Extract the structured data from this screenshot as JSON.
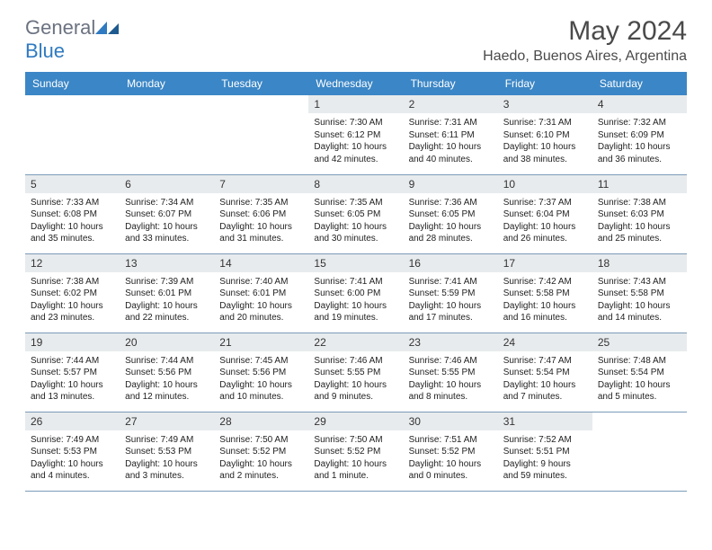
{
  "logo": {
    "word1": "General",
    "word2": "Blue"
  },
  "header": {
    "title": "May 2024",
    "location": "Haedo, Buenos Aires, Argentina"
  },
  "weekdays": [
    "Sunday",
    "Monday",
    "Tuesday",
    "Wednesday",
    "Thursday",
    "Friday",
    "Saturday"
  ],
  "styling": {
    "type": "calendar-table",
    "header_bg": "#3b86c6",
    "header_fg": "#ffffff",
    "daynum_bg": "#e8ebed",
    "text_color": "#222222",
    "title_color": "#4a4a4a",
    "border_color": "#7a9bb8",
    "font_family": "Arial",
    "title_fontsize": 30,
    "location_fontsize": 16,
    "header_fontsize": 12,
    "daynum_fontsize": 12,
    "body_fontsize": 10,
    "columns": 7,
    "rows": 5
  },
  "first_day_column": 3,
  "days": [
    {
      "n": 1,
      "sunrise": "7:30 AM",
      "sunset": "6:12 PM",
      "daylight": "10 hours and 42 minutes."
    },
    {
      "n": 2,
      "sunrise": "7:31 AM",
      "sunset": "6:11 PM",
      "daylight": "10 hours and 40 minutes."
    },
    {
      "n": 3,
      "sunrise": "7:31 AM",
      "sunset": "6:10 PM",
      "daylight": "10 hours and 38 minutes."
    },
    {
      "n": 4,
      "sunrise": "7:32 AM",
      "sunset": "6:09 PM",
      "daylight": "10 hours and 36 minutes."
    },
    {
      "n": 5,
      "sunrise": "7:33 AM",
      "sunset": "6:08 PM",
      "daylight": "10 hours and 35 minutes."
    },
    {
      "n": 6,
      "sunrise": "7:34 AM",
      "sunset": "6:07 PM",
      "daylight": "10 hours and 33 minutes."
    },
    {
      "n": 7,
      "sunrise": "7:35 AM",
      "sunset": "6:06 PM",
      "daylight": "10 hours and 31 minutes."
    },
    {
      "n": 8,
      "sunrise": "7:35 AM",
      "sunset": "6:05 PM",
      "daylight": "10 hours and 30 minutes."
    },
    {
      "n": 9,
      "sunrise": "7:36 AM",
      "sunset": "6:05 PM",
      "daylight": "10 hours and 28 minutes."
    },
    {
      "n": 10,
      "sunrise": "7:37 AM",
      "sunset": "6:04 PM",
      "daylight": "10 hours and 26 minutes."
    },
    {
      "n": 11,
      "sunrise": "7:38 AM",
      "sunset": "6:03 PM",
      "daylight": "10 hours and 25 minutes."
    },
    {
      "n": 12,
      "sunrise": "7:38 AM",
      "sunset": "6:02 PM",
      "daylight": "10 hours and 23 minutes."
    },
    {
      "n": 13,
      "sunrise": "7:39 AM",
      "sunset": "6:01 PM",
      "daylight": "10 hours and 22 minutes."
    },
    {
      "n": 14,
      "sunrise": "7:40 AM",
      "sunset": "6:01 PM",
      "daylight": "10 hours and 20 minutes."
    },
    {
      "n": 15,
      "sunrise": "7:41 AM",
      "sunset": "6:00 PM",
      "daylight": "10 hours and 19 minutes."
    },
    {
      "n": 16,
      "sunrise": "7:41 AM",
      "sunset": "5:59 PM",
      "daylight": "10 hours and 17 minutes."
    },
    {
      "n": 17,
      "sunrise": "7:42 AM",
      "sunset": "5:58 PM",
      "daylight": "10 hours and 16 minutes."
    },
    {
      "n": 18,
      "sunrise": "7:43 AM",
      "sunset": "5:58 PM",
      "daylight": "10 hours and 14 minutes."
    },
    {
      "n": 19,
      "sunrise": "7:44 AM",
      "sunset": "5:57 PM",
      "daylight": "10 hours and 13 minutes."
    },
    {
      "n": 20,
      "sunrise": "7:44 AM",
      "sunset": "5:56 PM",
      "daylight": "10 hours and 12 minutes."
    },
    {
      "n": 21,
      "sunrise": "7:45 AM",
      "sunset": "5:56 PM",
      "daylight": "10 hours and 10 minutes."
    },
    {
      "n": 22,
      "sunrise": "7:46 AM",
      "sunset": "5:55 PM",
      "daylight": "10 hours and 9 minutes."
    },
    {
      "n": 23,
      "sunrise": "7:46 AM",
      "sunset": "5:55 PM",
      "daylight": "10 hours and 8 minutes."
    },
    {
      "n": 24,
      "sunrise": "7:47 AM",
      "sunset": "5:54 PM",
      "daylight": "10 hours and 7 minutes."
    },
    {
      "n": 25,
      "sunrise": "7:48 AM",
      "sunset": "5:54 PM",
      "daylight": "10 hours and 5 minutes."
    },
    {
      "n": 26,
      "sunrise": "7:49 AM",
      "sunset": "5:53 PM",
      "daylight": "10 hours and 4 minutes."
    },
    {
      "n": 27,
      "sunrise": "7:49 AM",
      "sunset": "5:53 PM",
      "daylight": "10 hours and 3 minutes."
    },
    {
      "n": 28,
      "sunrise": "7:50 AM",
      "sunset": "5:52 PM",
      "daylight": "10 hours and 2 minutes."
    },
    {
      "n": 29,
      "sunrise": "7:50 AM",
      "sunset": "5:52 PM",
      "daylight": "10 hours and 1 minute."
    },
    {
      "n": 30,
      "sunrise": "7:51 AM",
      "sunset": "5:52 PM",
      "daylight": "10 hours and 0 minutes."
    },
    {
      "n": 31,
      "sunrise": "7:52 AM",
      "sunset": "5:51 PM",
      "daylight": "9 hours and 59 minutes."
    }
  ]
}
